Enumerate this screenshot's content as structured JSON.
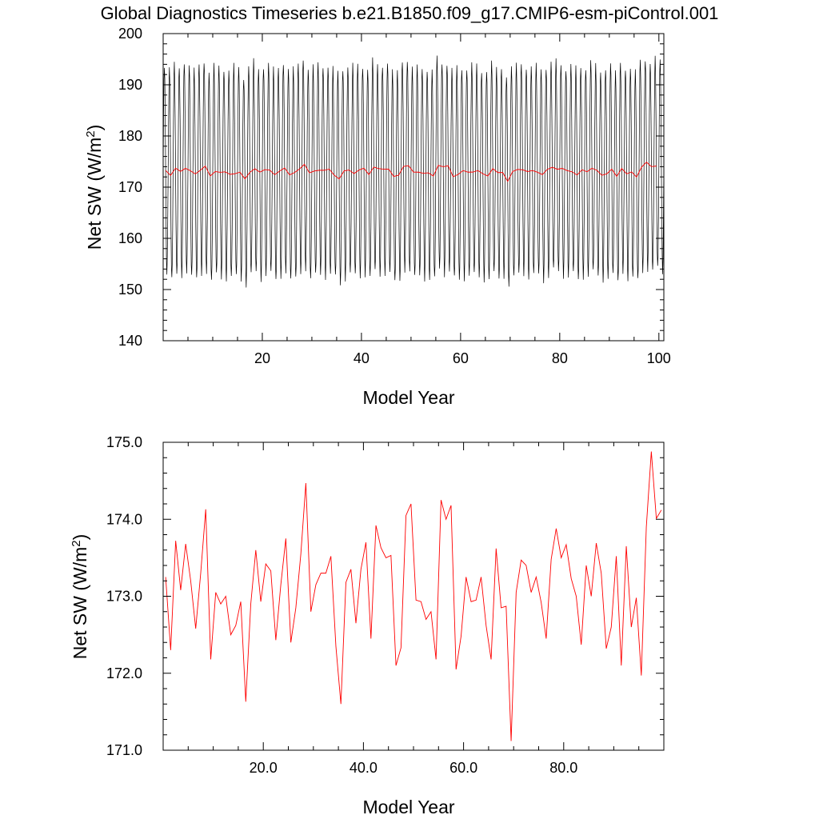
{
  "title": "Global Diagnostics Timeseries b.e21.B1850.f09_g17.CMIP6-esm-piControl.001",
  "colors": {
    "monthly": "#000000",
    "annual": "#ff0000"
  },
  "chart_data": [
    {
      "type": "line",
      "xlabel": "Model Year",
      "ylabel_main": "Net SW (W/m",
      "ylabel_sup": "2",
      "ylabel_end": ")",
      "xlim": [
        0,
        101
      ],
      "ylim": [
        140,
        200
      ],
      "xticks": [
        20,
        40,
        60,
        80,
        100
      ],
      "xtick_labels": [
        "20",
        "40",
        "60",
        "80",
        "100"
      ],
      "yticks": [
        140,
        150,
        160,
        170,
        180,
        190,
        200
      ],
      "ytick_labels": [
        "140",
        "150",
        "160",
        "170",
        "180",
        "190",
        "200"
      ],
      "series": [
        {
          "key": "monthly",
          "kind": "seasonal-cycle",
          "years": [
            0,
            101
          ],
          "approx_max": 190.5,
          "approx_min": 149.5
        },
        {
          "key": "annual",
          "kind": "annual-mean",
          "ref": "annual_mean"
        }
      ]
    },
    {
      "type": "line",
      "xlabel": "Model Year",
      "ylabel_main": "Net SW (W/m",
      "ylabel_sup": "2",
      "ylabel_end": ")",
      "xlim": [
        0,
        100
      ],
      "ylim": [
        171.0,
        175.0
      ],
      "xticks": [
        20,
        40,
        60,
        80
      ],
      "xtick_labels": [
        "20.0",
        "40.0",
        "60.0",
        "80.0"
      ],
      "yticks": [
        171.0,
        172.0,
        173.0,
        174.0,
        175.0
      ],
      "ytick_labels": [
        "171.0",
        "172.0",
        "173.0",
        "174.0",
        "175.0"
      ],
      "series": [
        {
          "key": "annual",
          "kind": "annual-mean",
          "ref": "annual_mean"
        }
      ]
    }
  ],
  "annual_mean": {
    "x": [
      0.5,
      1.5,
      2.5,
      3.5,
      4.5,
      5.5,
      6.5,
      7.5,
      8.5,
      9.5,
      10.5,
      11.5,
      12.5,
      13.5,
      14.5,
      15.5,
      16.5,
      17.5,
      18.5,
      19.5,
      20.5,
      21.5,
      22.5,
      23.5,
      24.5,
      25.5,
      26.5,
      27.5,
      28.5,
      29.5,
      30.5,
      31.5,
      32.5,
      33.5,
      34.5,
      35.5,
      36.5,
      37.5,
      38.5,
      39.5,
      40.5,
      41.5,
      42.5,
      43.5,
      44.5,
      45.5,
      46.5,
      47.5,
      48.5,
      49.5,
      50.5,
      51.5,
      52.5,
      53.5,
      54.5,
      55.5,
      56.5,
      57.5,
      58.5,
      59.5,
      60.5,
      61.5,
      62.5,
      63.5,
      64.5,
      65.5,
      66.5,
      67.5,
      68.5,
      69.5,
      70.5,
      71.5,
      72.5,
      73.5,
      74.5,
      75.5,
      76.5,
      77.5,
      78.5,
      79.5,
      80.5,
      81.5,
      82.5,
      83.5,
      84.5,
      85.5,
      86.5,
      87.5,
      88.5,
      89.5,
      90.5,
      91.5,
      92.5,
      93.5,
      94.5,
      95.5,
      96.5,
      97.5,
      98.5,
      99.5
    ],
    "y": [
      173.25,
      172.3,
      173.72,
      173.08,
      173.68,
      173.2,
      172.58,
      173.3,
      174.13,
      172.18,
      173.05,
      172.9,
      173.0,
      172.5,
      172.62,
      172.93,
      171.63,
      172.9,
      173.6,
      172.93,
      173.42,
      173.33,
      172.43,
      173.15,
      173.75,
      172.4,
      172.85,
      173.55,
      174.47,
      172.8,
      173.15,
      173.3,
      173.3,
      173.52,
      172.35,
      171.6,
      173.18,
      173.35,
      172.65,
      173.35,
      173.7,
      172.45,
      173.92,
      173.63,
      173.5,
      173.53,
      172.1,
      172.33,
      174.05,
      174.2,
      172.95,
      172.93,
      172.7,
      172.8,
      172.18,
      174.25,
      174.0,
      174.18,
      172.05,
      172.48,
      173.25,
      172.93,
      172.95,
      173.25,
      172.62,
      172.18,
      173.62,
      172.85,
      172.87,
      171.12,
      173.05,
      173.47,
      173.4,
      173.05,
      173.25,
      172.92,
      172.45,
      173.48,
      173.88,
      173.5,
      173.67,
      173.23,
      173.0,
      172.37,
      173.4,
      173.0,
      173.69,
      173.3,
      172.32,
      172.6,
      173.52,
      172.1,
      173.65,
      172.6,
      172.98,
      171.97,
      173.9,
      174.88,
      174.01,
      174.12
    ]
  }
}
